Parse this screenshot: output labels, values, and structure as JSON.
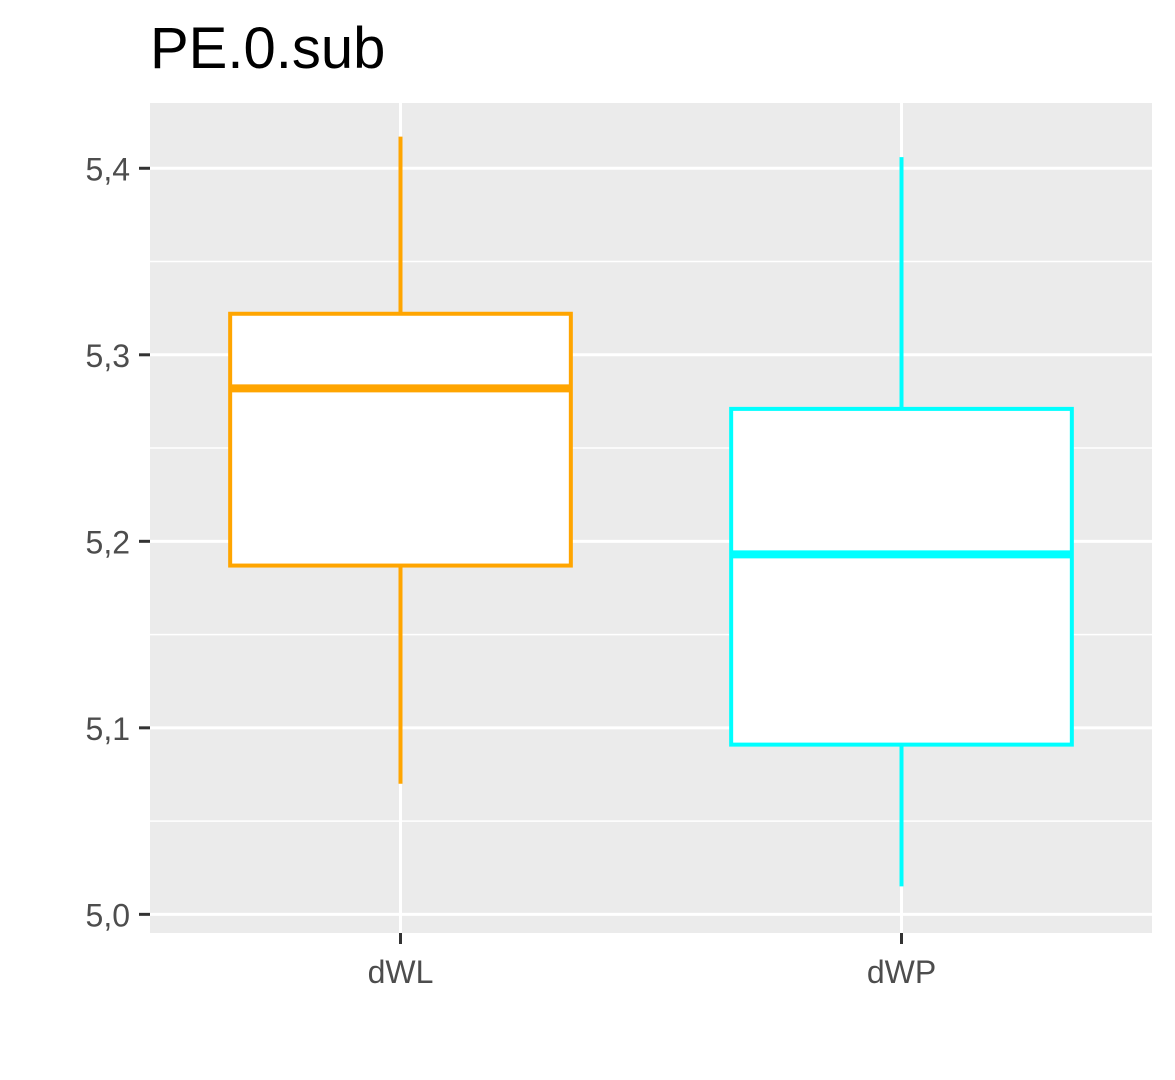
{
  "chart_data": {
    "type": "boxplot",
    "title": "PE.0.sub",
    "xlabel": "",
    "ylabel": "",
    "ylim": [
      4.99,
      5.435
    ],
    "y_ticks": [
      "5,0",
      "5,1",
      "5,2",
      "5,3",
      "5,4"
    ],
    "y_tick_values": [
      5.0,
      5.1,
      5.2,
      5.3,
      5.4
    ],
    "categories": [
      "dWL",
      "dWP"
    ],
    "boxes": [
      {
        "category": "dWL",
        "whisker_low": 5.07,
        "q1": 5.187,
        "median": 5.282,
        "q3": 5.322,
        "whisker_high": 5.417,
        "color": "#FFA500"
      },
      {
        "category": "dWP",
        "whisker_low": 5.015,
        "q1": 5.091,
        "median": 5.193,
        "q3": 5.271,
        "whisker_high": 5.406,
        "color": "#00FFFF"
      }
    ],
    "panel_color": "#EBEBEB",
    "grid": true,
    "legend": "none"
  }
}
